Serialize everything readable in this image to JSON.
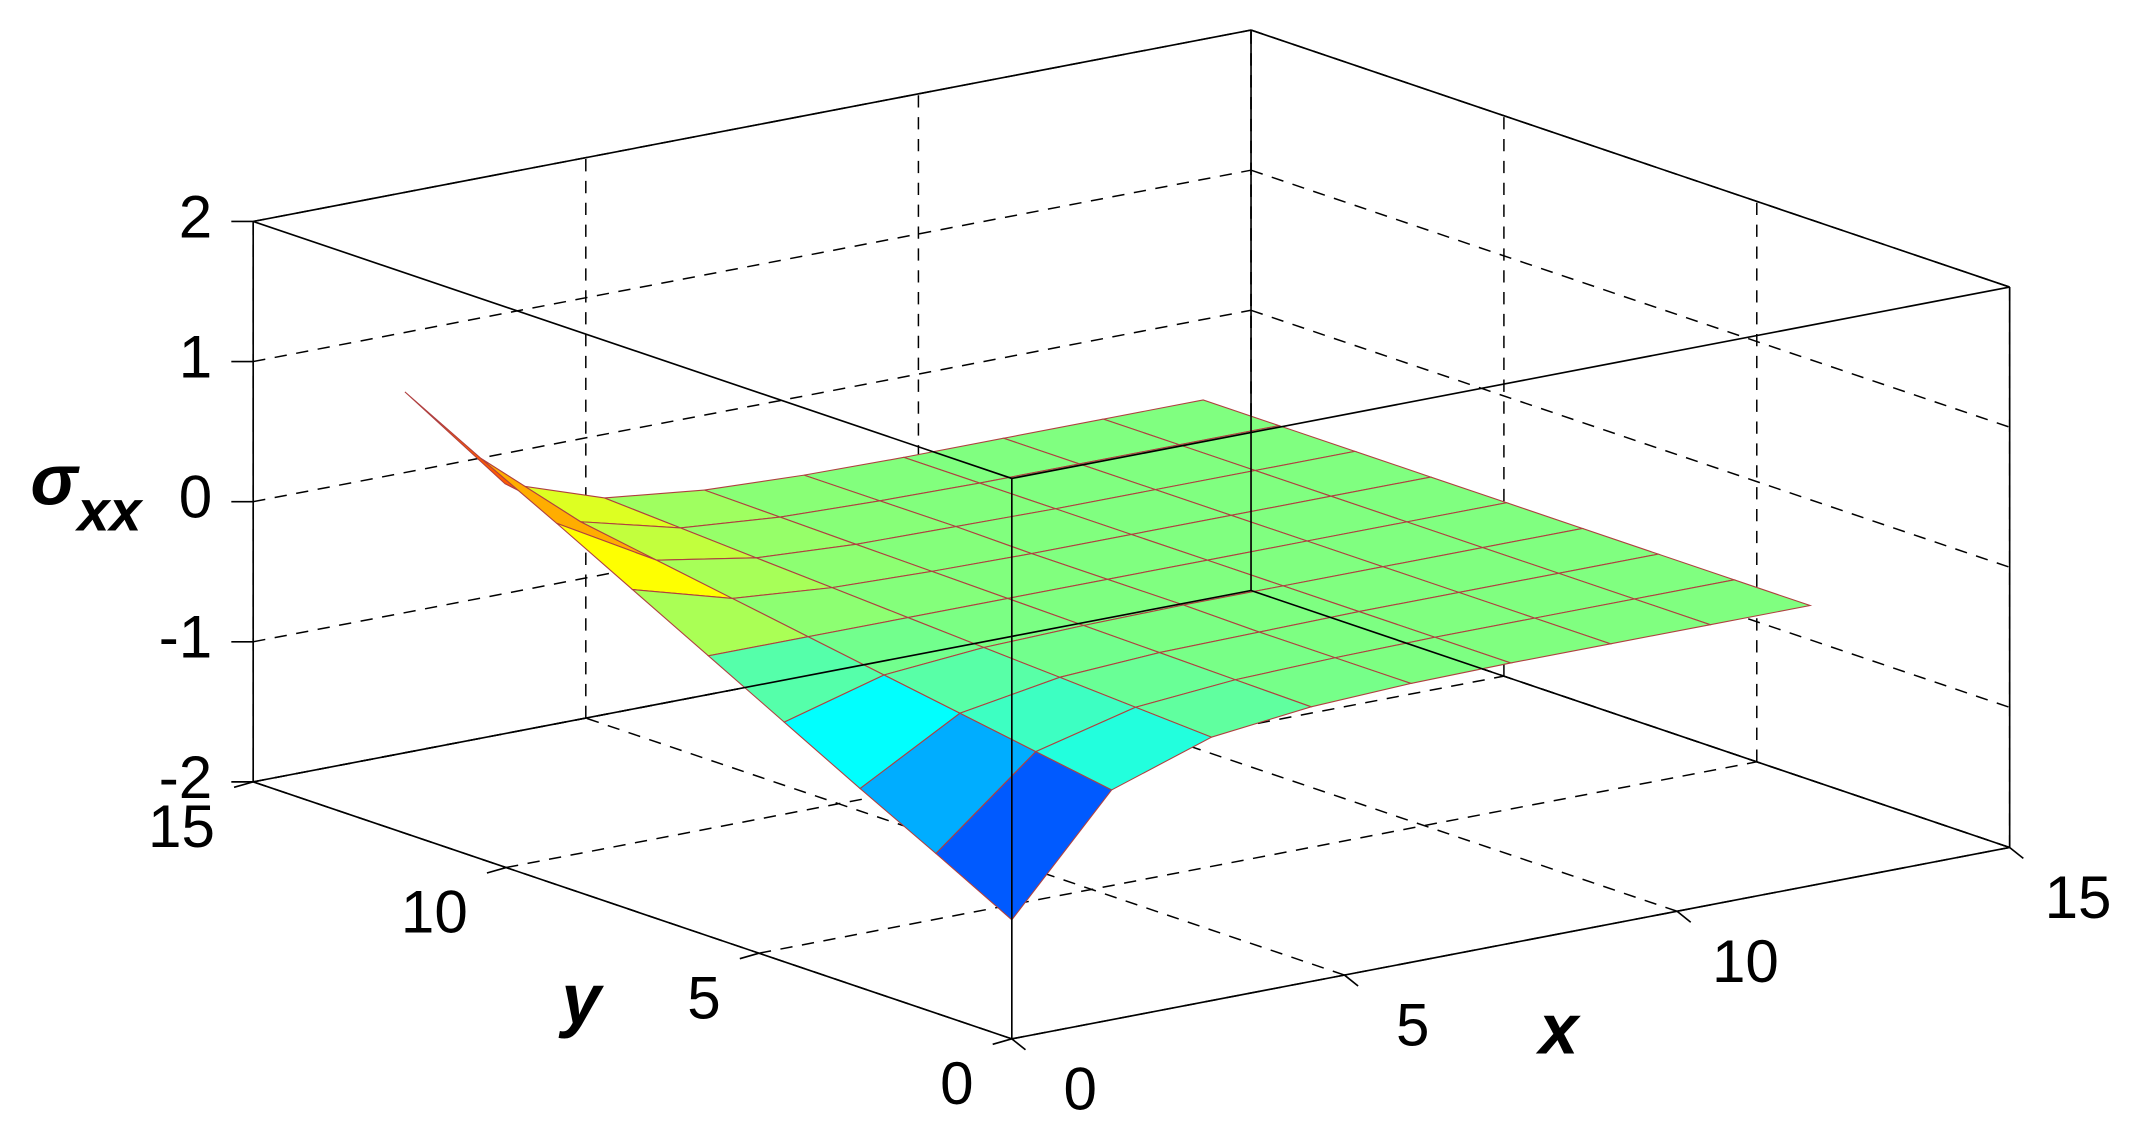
{
  "chart_data": {
    "type": "surface",
    "x": [
      0,
      1.5,
      3,
      4.5,
      6,
      7.5,
      9,
      10.5,
      12
    ],
    "y": [
      0,
      1.5,
      3,
      4.5,
      6,
      7.5,
      9,
      10.5,
      12
    ],
    "z": [
      [
        -1.15,
        -0.36,
        -0.12,
        -0.04,
        -0.01,
        0,
        0,
        0,
        0
      ],
      [
        -0.86,
        -0.27,
        -0.09,
        -0.03,
        -0.01,
        0,
        0,
        0,
        0
      ],
      [
        -0.58,
        -0.18,
        -0.06,
        -0.02,
        -0.01,
        0,
        0,
        0,
        0
      ],
      [
        -0.29,
        -0.09,
        -0.03,
        -0.01,
        0,
        0,
        0,
        0,
        0
      ],
      [
        0,
        0,
        0,
        0,
        0,
        0,
        0,
        0,
        0
      ],
      [
        0.29,
        0.09,
        0.03,
        0.01,
        0,
        0,
        0,
        0,
        0
      ],
      [
        0.58,
        0.18,
        0.06,
        0.02,
        0.01,
        0,
        0,
        0,
        0
      ],
      [
        0.86,
        0.27,
        0.09,
        0.03,
        0.01,
        0,
        0,
        0,
        0
      ],
      [
        1.15,
        0.36,
        0.12,
        0.04,
        0.01,
        0,
        0,
        0,
        0
      ]
    ],
    "xlim": [
      0,
      15
    ],
    "ylim": [
      0,
      15
    ],
    "zlim": [
      -2,
      2
    ],
    "xticks": [
      0,
      5,
      10,
      15
    ],
    "yticks": [
      0,
      5,
      10,
      15
    ],
    "zticks": [
      -2,
      -1,
      0,
      1,
      2
    ],
    "xlabel": "x",
    "ylabel": "y",
    "zlabel": "σ",
    "zlabel_subscript": "xx",
    "grid": true,
    "colormap": "jet",
    "edge_color": "#b04040"
  }
}
